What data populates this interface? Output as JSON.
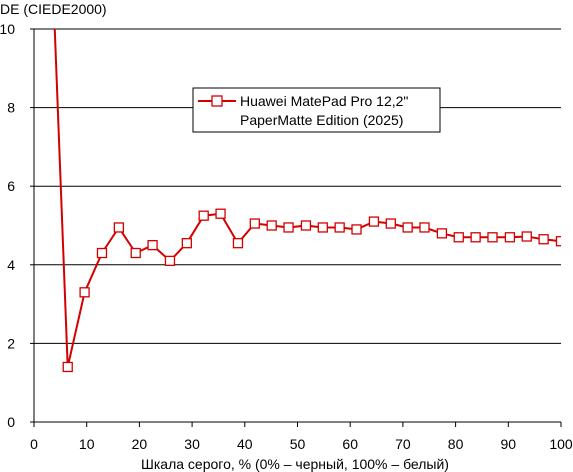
{
  "chart_data": {
    "type": "line",
    "title": "",
    "ylabel": "DE (CIEDE2000)",
    "xlabel": "Шкала серого, % (0% – черный, 100% – белый)",
    "xlim": [
      0,
      100
    ],
    "ylim": [
      0,
      10
    ],
    "xticks": [
      "0",
      "10",
      "20",
      "30",
      "40",
      "50",
      "60",
      "70",
      "80",
      "90",
      "100"
    ],
    "yticks": [
      "0",
      "2",
      "4",
      "6",
      "8",
      "10"
    ],
    "grid": "horizontal",
    "legend": "top-center",
    "colors": {
      "series": "#d40000",
      "marker_fill": "#ffffff",
      "grid": "#000000"
    },
    "series": [
      {
        "name_lines": [
          "Huawei MatePad Pro 12,2\"",
          "PaperMatte Edition (2025)"
        ],
        "pre_line": [
          [
            3.9,
            10.1
          ],
          [
            6.4,
            1.4
          ]
        ],
        "x": [
          6.4,
          9.6,
          12.9,
          16.1,
          19.3,
          22.5,
          25.8,
          29.0,
          32.2,
          35.4,
          38.7,
          41.9,
          45.1,
          48.3,
          51.6,
          54.8,
          58.0,
          61.2,
          64.5,
          67.7,
          70.9,
          74.1,
          77.4,
          80.6,
          83.8,
          87.0,
          90.3,
          93.5,
          96.7,
          100.0
        ],
        "y": [
          1.4,
          3.3,
          4.3,
          4.95,
          4.3,
          4.5,
          4.1,
          4.55,
          5.25,
          5.3,
          4.55,
          5.05,
          5.0,
          4.95,
          5.0,
          4.95,
          4.95,
          4.9,
          5.1,
          5.05,
          4.95,
          4.95,
          4.8,
          4.7,
          4.7,
          4.7,
          4.7,
          4.72,
          4.65,
          4.6
        ]
      }
    ]
  }
}
